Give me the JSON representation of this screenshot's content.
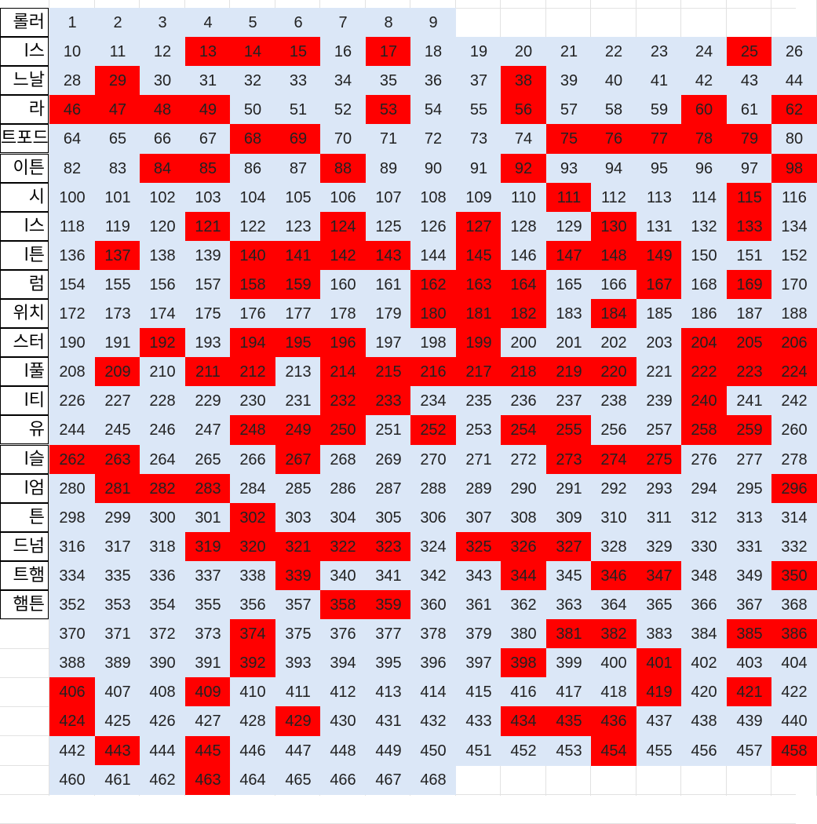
{
  "sheet": {
    "colors": {
      "available": "#dbe7f7",
      "taken": "#ff0000",
      "grid": "#e2e2e2",
      "text": "#222222"
    },
    "columns_visible": 17,
    "max_number": 468,
    "team_names": [
      "롤러",
      "l스",
      "느날",
      "라",
      "트포드",
      "이튼",
      "시",
      "l스",
      "l튼",
      "럼",
      "위치",
      "스터",
      "l풀",
      "l티",
      "유",
      "l슬",
      "l엄",
      "튼",
      "드넘",
      "트햄",
      "햄튼"
    ],
    "taken_numbers": [
      13,
      14,
      15,
      17,
      25,
      29,
      38,
      46,
      47,
      48,
      49,
      53,
      56,
      60,
      62,
      68,
      69,
      75,
      76,
      77,
      78,
      79,
      84,
      85,
      88,
      92,
      98,
      111,
      115,
      121,
      124,
      127,
      130,
      133,
      137,
      140,
      141,
      142,
      143,
      145,
      147,
      148,
      149,
      158,
      159,
      162,
      163,
      164,
      167,
      169,
      180,
      181,
      182,
      184,
      192,
      194,
      195,
      196,
      199,
      204,
      205,
      206,
      209,
      211,
      212,
      214,
      215,
      216,
      217,
      218,
      219,
      220,
      222,
      223,
      224,
      232,
      233,
      240,
      248,
      249,
      250,
      252,
      254,
      255,
      258,
      259,
      262,
      263,
      267,
      273,
      274,
      275,
      281,
      282,
      283,
      296,
      302,
      319,
      320,
      321,
      322,
      323,
      325,
      326,
      327,
      339,
      344,
      346,
      347,
      350,
      358,
      359,
      374,
      381,
      382,
      385,
      386,
      392,
      398,
      401,
      406,
      409,
      419,
      421,
      424,
      429,
      434,
      435,
      436,
      443,
      445,
      454,
      458,
      463
    ]
  }
}
